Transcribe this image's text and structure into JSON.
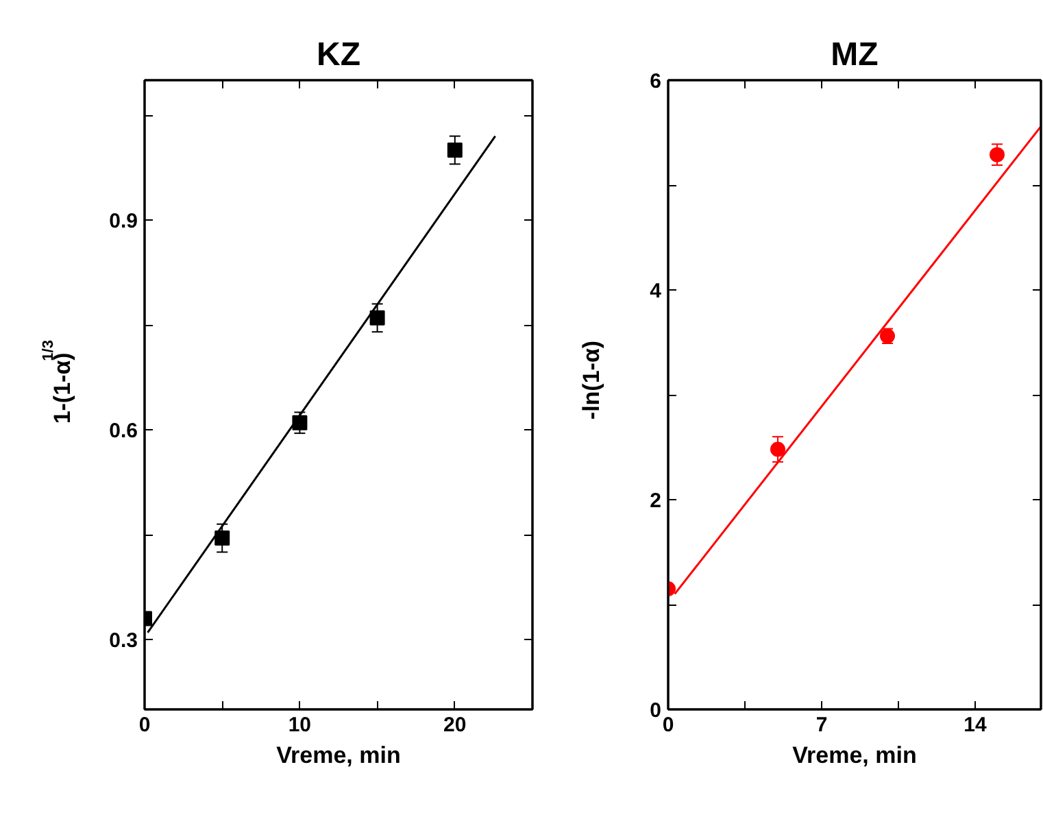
{
  "chart_data": [
    {
      "type": "scatter",
      "title": "KZ",
      "xlabel": "Vreme, min",
      "ylabel": "1-(1-α)$^{1/3}$",
      "xlim": [
        0,
        25
      ],
      "ylim": [
        0.2,
        1.1
      ],
      "xticks": [
        0,
        {
          "value": 5,
          "label": null
        },
        10,
        {
          "value": 15,
          "label": null
        },
        20,
        {
          "value": 25,
          "label": null
        }
      ],
      "yticks": [
        0.3,
        {
          "value": 0.45,
          "label": null
        },
        0.6,
        {
          "value": 0.75,
          "label": null
        },
        0.9,
        {
          "value": 1.05,
          "label": null
        }
      ],
      "grid": false,
      "series": [
        {
          "marker": "square",
          "color": "#000000",
          "x": [
            0,
            5,
            10,
            15,
            20
          ],
          "values": [
            0.33,
            0.445,
            0.61,
            0.76,
            1.0
          ],
          "errors": [
            null,
            0.02,
            0.015,
            0.02,
            0.02
          ]
        },
        {
          "type": "line",
          "color": "#000000",
          "x": [
            0.2,
            22.6
          ],
          "values": [
            0.31,
            1.02
          ]
        }
      ]
    },
    {
      "type": "scatter",
      "title": "MZ",
      "xlabel": "Vreme, min",
      "ylabel": "-ln(1-α)",
      "xlim": [
        0,
        17
      ],
      "ylim": [
        0,
        6
      ],
      "xticks": [
        0,
        {
          "value": 3.5,
          "label": null
        },
        7,
        {
          "value": 10.5,
          "label": null
        },
        14
      ],
      "yticks": [
        0,
        {
          "value": 1,
          "label": null
        },
        2,
        {
          "value": 3,
          "label": null
        },
        4,
        {
          "value": 5,
          "label": null
        },
        6
      ],
      "grid": false,
      "series": [
        {
          "marker": "circle",
          "color": "#ff0000",
          "x": [
            0,
            5,
            10,
            15
          ],
          "values": [
            1.15,
            2.48,
            3.56,
            5.29
          ],
          "errors": [
            null,
            0.12,
            0.07,
            0.1
          ]
        },
        {
          "type": "line",
          "color": "#ff0000",
          "x": [
            0.3,
            17
          ],
          "values": [
            1.1,
            5.56
          ]
        }
      ]
    }
  ]
}
